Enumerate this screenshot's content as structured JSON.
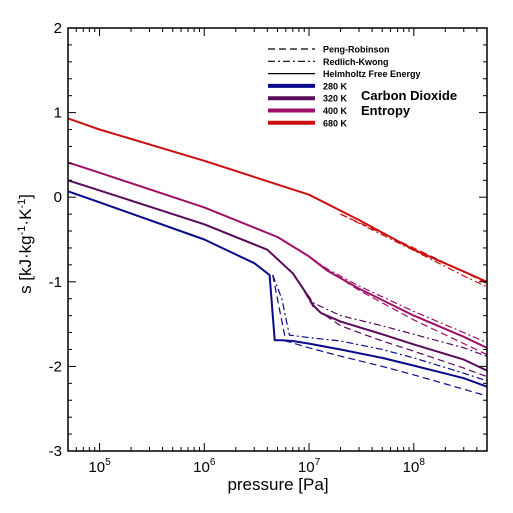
{
  "chart_data": {
    "type": "line",
    "title": "",
    "xlabel": "pressure [Pa]",
    "ylabel_parts": [
      "s [kJ·kg",
      "-1",
      "·K",
      "-1",
      "]"
    ],
    "xscale": "log",
    "xlim": [
      50000,
      500000000
    ],
    "ylim": [
      -3,
      2
    ],
    "x_ticks": [
      {
        "value": 100000,
        "base": "10",
        "exp": "5"
      },
      {
        "value": 1000000,
        "base": "10",
        "exp": "6"
      },
      {
        "value": 10000000,
        "base": "10",
        "exp": "7"
      },
      {
        "value": 100000000,
        "base": "10",
        "exp": "8"
      }
    ],
    "y_ticks": [
      {
        "value": 2,
        "label": "2"
      },
      {
        "value": 1,
        "label": "1"
      },
      {
        "value": 0,
        "label": "0"
      },
      {
        "value": -1,
        "label": "-1"
      },
      {
        "value": -2,
        "label": "-2"
      },
      {
        "value": -3,
        "label": "-3"
      }
    ],
    "grid": false,
    "legend_position": "top-right",
    "annotation_lines": [
      "Carbon Dioxide",
      "Entropy"
    ],
    "legend": {
      "methods": [
        {
          "name": "Peng-Robinson",
          "style": "dashed"
        },
        {
          "name": "Redlich-Kwong",
          "style": "dashdot"
        },
        {
          "name": "Helmholtz Free Energy",
          "style": "solid"
        }
      ],
      "temperatures": [
        {
          "name": "280 K",
          "color": "#0a0a8c"
        },
        {
          "name": "320 K",
          "color": "#5a0a5a"
        },
        {
          "name": "400 K",
          "color": "#a01068"
        },
        {
          "name": "680 K",
          "color": "#cc1010"
        }
      ]
    },
    "series": [
      {
        "temperature": "680 K",
        "method": "Helmholtz Free Energy",
        "color": "#cc1010",
        "style": "solid",
        "x": [
          50000,
          100000,
          1000000,
          10000000,
          30000000,
          100000000,
          300000000,
          500000000
        ],
        "y": [
          0.93,
          0.8,
          0.43,
          0.03,
          -0.27,
          -0.62,
          -0.88,
          -1.0
        ]
      },
      {
        "temperature": "680 K",
        "method": "Peng-Robinson",
        "color": "#cc1010",
        "style": "dashed",
        "x": [
          20000000,
          100000000,
          300000000,
          500000000
        ],
        "y": [
          -0.2,
          -0.6,
          -0.88,
          -1.02
        ]
      },
      {
        "temperature": "680 K",
        "method": "Redlich-Kwong",
        "color": "#cc1010",
        "style": "dashdot",
        "x": [
          20000000,
          100000000,
          300000000,
          500000000
        ],
        "y": [
          -0.2,
          -0.63,
          -0.93,
          -1.06
        ]
      },
      {
        "temperature": "400 K",
        "method": "Helmholtz Free Energy",
        "color": "#a01068",
        "style": "solid",
        "x": [
          50000,
          100000,
          1000000,
          5000000,
          10000000,
          15000000,
          30000000,
          100000000,
          300000000,
          500000000
        ],
        "y": [
          0.41,
          0.29,
          -0.12,
          -0.47,
          -0.7,
          -0.87,
          -1.08,
          -1.4,
          -1.65,
          -1.78
        ]
      },
      {
        "temperature": "400 K",
        "method": "Peng-Robinson",
        "color": "#a01068",
        "style": "dashed",
        "x": [
          8000000,
          15000000,
          30000000,
          100000000,
          300000000,
          500000000
        ],
        "y": [
          -0.62,
          -0.86,
          -1.1,
          -1.45,
          -1.73,
          -1.86
        ]
      },
      {
        "temperature": "400 K",
        "method": "Redlich-Kwong",
        "color": "#a01068",
        "style": "dashdot",
        "x": [
          8000000,
          15000000,
          30000000,
          100000000,
          300000000,
          500000000
        ],
        "y": [
          -0.62,
          -0.85,
          -1.05,
          -1.35,
          -1.6,
          -1.72
        ]
      },
      {
        "temperature": "320 K",
        "method": "Helmholtz Free Energy",
        "color": "#5a0a5a",
        "style": "solid",
        "x": [
          50000,
          100000,
          1000000,
          4000000,
          7000000,
          9000000,
          11000000,
          13000000,
          20000000,
          50000000,
          100000000,
          300000000,
          500000000
        ],
        "y": [
          0.2,
          0.08,
          -0.32,
          -0.62,
          -0.9,
          -1.1,
          -1.28,
          -1.37,
          -1.47,
          -1.62,
          -1.74,
          -1.92,
          -2.05
        ]
      },
      {
        "temperature": "320 K",
        "method": "Peng-Robinson",
        "color": "#5a0a5a",
        "style": "dashed",
        "x": [
          8000000,
          11000000,
          20000000,
          50000000,
          100000000,
          300000000,
          500000000
        ],
        "y": [
          -1.0,
          -1.3,
          -1.52,
          -1.7,
          -1.82,
          -2.02,
          -2.12
        ]
      },
      {
        "temperature": "320 K",
        "method": "Redlich-Kwong",
        "color": "#5a0a5a",
        "style": "dashdot",
        "x": [
          8000000,
          11000000,
          20000000,
          50000000,
          100000000,
          300000000,
          500000000
        ],
        "y": [
          -1.0,
          -1.25,
          -1.4,
          -1.52,
          -1.62,
          -1.78,
          -1.88
        ]
      },
      {
        "temperature": "280 K",
        "method": "Helmholtz Free Energy",
        "color": "#0a0a8c",
        "style": "solid",
        "x": [
          50000,
          100000,
          1000000,
          3000000,
          4200000,
          4700000,
          5500000,
          7000000,
          10000000,
          20000000,
          50000000,
          100000000,
          300000000,
          500000000
        ],
        "y": [
          0.07,
          -0.06,
          -0.5,
          -0.78,
          -0.92,
          -1.69,
          -1.69,
          -1.7,
          -1.73,
          -1.8,
          -1.9,
          -1.99,
          -2.14,
          -2.24
        ]
      },
      {
        "temperature": "280 K",
        "method": "Peng-Robinson",
        "color": "#0a0a8c",
        "style": "dashed",
        "x": [
          4500000,
          6000000,
          10000000,
          20000000,
          50000000,
          100000000,
          300000000,
          500000000
        ],
        "y": [
          -0.92,
          -1.7,
          -1.78,
          -1.88,
          -2.0,
          -2.1,
          -2.27,
          -2.35
        ]
      },
      {
        "temperature": "280 K",
        "method": "Redlich-Kwong",
        "color": "#0a0a8c",
        "style": "dashdot",
        "x": [
          4500000,
          5500000,
          6500000,
          10000000,
          20000000,
          50000000,
          100000000,
          300000000,
          500000000
        ],
        "y": [
          -0.92,
          -1.2,
          -1.63,
          -1.66,
          -1.7,
          -1.8,
          -1.9,
          -2.08,
          -2.17
        ]
      }
    ]
  }
}
